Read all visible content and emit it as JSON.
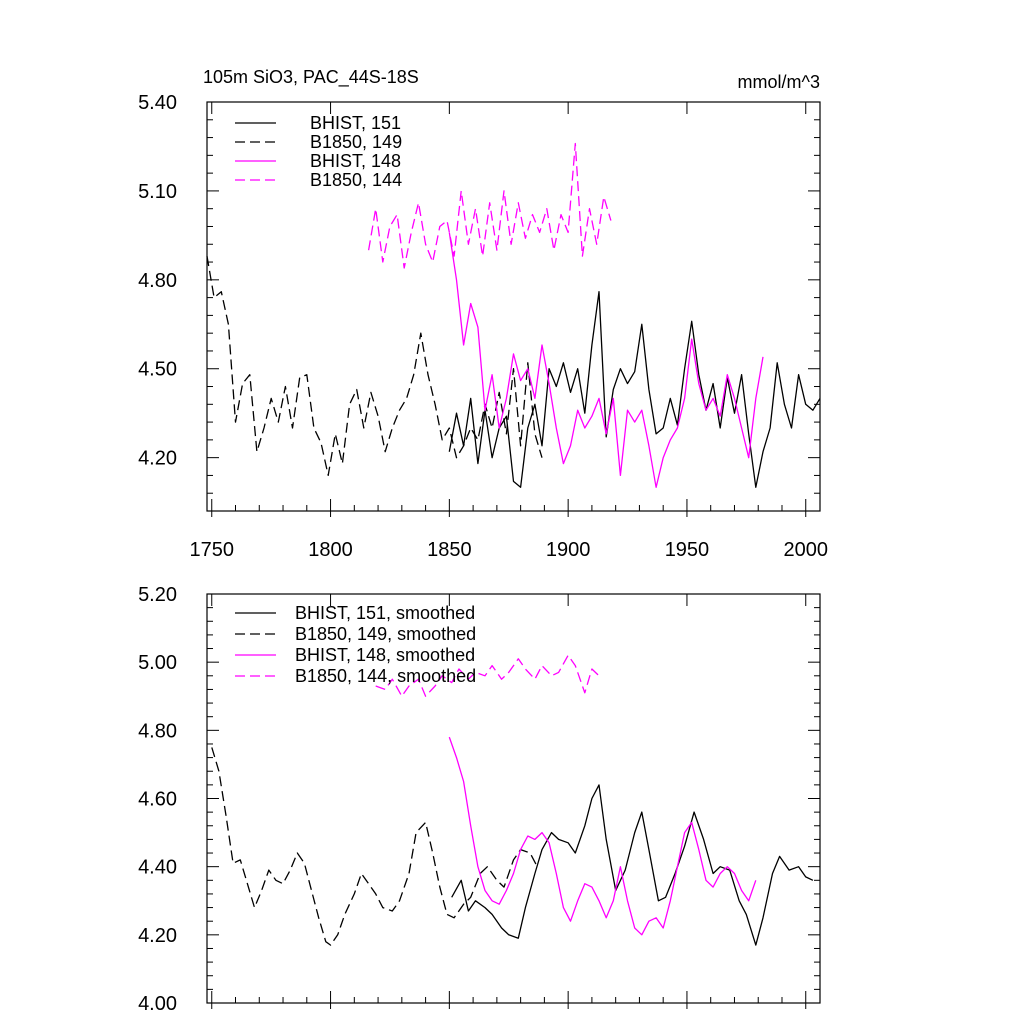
{
  "figure": {
    "title_left": "105m SiO3, PAC_44S-18S",
    "title_right": "mmol/m^3"
  },
  "chart_data": [
    {
      "type": "line",
      "panel": "top",
      "title": "105m SiO3, PAC_44S-18S",
      "units": "mmol/m^3",
      "xlim": [
        1748,
        2006
      ],
      "ylim": [
        4.02,
        5.4
      ],
      "x_ticks": [
        1750,
        1800,
        1850,
        1900,
        1950,
        2000
      ],
      "x_tick_labels": [
        "1750",
        "1800",
        "1850",
        "1900",
        "1950",
        "2000"
      ],
      "y_ticks": [
        4.2,
        4.5,
        4.8,
        5.1,
        5.4
      ],
      "y_tick_labels": [
        "4.20",
        "4.50",
        "4.80",
        "5.10",
        "5.40"
      ],
      "legend_position": "top-left",
      "grid": false,
      "series": [
        {
          "name": "BHIST, 151",
          "color": "#000000",
          "dash": "solid",
          "x": [
            1850,
            1853,
            1856,
            1859,
            1862,
            1865,
            1868,
            1871,
            1874,
            1877,
            1880,
            1883,
            1886,
            1889,
            1892,
            1895,
            1898,
            1901,
            1904,
            1907,
            1910,
            1913,
            1916,
            1919,
            1922,
            1925,
            1928,
            1931,
            1934,
            1937,
            1940,
            1943,
            1946,
            1949,
            1952,
            1955,
            1958,
            1961,
            1964,
            1967,
            1970,
            1973,
            1976,
            1979,
            1982,
            1985,
            1988,
            1991,
            1994,
            1997,
            2000,
            2003,
            2006
          ],
          "y": [
            4.22,
            4.35,
            4.24,
            4.4,
            4.18,
            4.36,
            4.2,
            4.3,
            4.34,
            4.12,
            4.1,
            4.3,
            4.38,
            4.24,
            4.5,
            4.44,
            4.52,
            4.42,
            4.5,
            4.35,
            4.58,
            4.76,
            4.27,
            4.43,
            4.5,
            4.45,
            4.49,
            4.65,
            4.43,
            4.28,
            4.3,
            4.4,
            4.31,
            4.5,
            4.66,
            4.48,
            4.36,
            4.45,
            4.3,
            4.47,
            4.35,
            4.48,
            4.28,
            4.1,
            4.22,
            4.3,
            4.52,
            4.38,
            4.3,
            4.48,
            4.38,
            4.36,
            4.4
          ]
        },
        {
          "name": "B1850, 149",
          "color": "#000000",
          "dash": "dashed",
          "x": [
            1748,
            1751,
            1754,
            1757,
            1760,
            1763,
            1766,
            1769,
            1772,
            1775,
            1778,
            1781,
            1784,
            1787,
            1790,
            1793,
            1796,
            1799,
            1802,
            1805,
            1808,
            1811,
            1814,
            1817,
            1820,
            1823,
            1826,
            1829,
            1832,
            1835,
            1838,
            1841,
            1844,
            1847,
            1850,
            1853,
            1856,
            1859,
            1862,
            1865,
            1868,
            1871,
            1874,
            1877,
            1880,
            1883,
            1886,
            1889
          ],
          "y": [
            4.88,
            4.74,
            4.76,
            4.65,
            4.32,
            4.45,
            4.48,
            4.22,
            4.3,
            4.4,
            4.32,
            4.44,
            4.3,
            4.47,
            4.48,
            4.3,
            4.25,
            4.14,
            4.28,
            4.18,
            4.38,
            4.43,
            4.3,
            4.42,
            4.34,
            4.22,
            4.3,
            4.36,
            4.4,
            4.48,
            4.62,
            4.48,
            4.38,
            4.26,
            4.3,
            4.2,
            4.24,
            4.3,
            4.26,
            4.38,
            4.3,
            4.42,
            4.28,
            4.5,
            4.24,
            4.52,
            4.28,
            4.2
          ]
        },
        {
          "name": "BHIST, 148",
          "color": "#ff00ff",
          "dash": "solid",
          "x": [
            1850,
            1853,
            1856,
            1859,
            1862,
            1865,
            1868,
            1871,
            1874,
            1877,
            1880,
            1883,
            1886,
            1889,
            1892,
            1895,
            1898,
            1901,
            1904,
            1907,
            1910,
            1913,
            1916,
            1919,
            1922,
            1925,
            1928,
            1931,
            1934,
            1937,
            1940,
            1943,
            1946,
            1949,
            1952,
            1955,
            1958,
            1961,
            1964,
            1967,
            1970,
            1973,
            1976,
            1979,
            1982
          ],
          "y": [
            4.96,
            4.8,
            4.58,
            4.72,
            4.64,
            4.36,
            4.48,
            4.3,
            4.4,
            4.55,
            4.46,
            4.5,
            4.4,
            4.58,
            4.45,
            4.3,
            4.18,
            4.24,
            4.36,
            4.3,
            4.34,
            4.4,
            4.28,
            4.4,
            4.14,
            4.36,
            4.32,
            4.36,
            4.24,
            4.1,
            4.2,
            4.26,
            4.3,
            4.4,
            4.6,
            4.45,
            4.36,
            4.4,
            4.34,
            4.48,
            4.4,
            4.3,
            4.2,
            4.4,
            4.54
          ]
        },
        {
          "name": "B1850, 144",
          "color": "#ff00ff",
          "dash": "dashed",
          "x": [
            1816,
            1819,
            1822,
            1825,
            1828,
            1831,
            1834,
            1837,
            1840,
            1843,
            1846,
            1849,
            1852,
            1855,
            1858,
            1861,
            1864,
            1867,
            1870,
            1873,
            1876,
            1879,
            1882,
            1885,
            1888,
            1891,
            1894,
            1897,
            1900,
            1903,
            1906,
            1909,
            1912,
            1915,
            1918
          ],
          "y": [
            4.9,
            5.04,
            4.86,
            4.98,
            5.02,
            4.84,
            4.96,
            5.06,
            4.92,
            4.86,
            4.98,
            5.0,
            4.88,
            5.1,
            4.92,
            5.04,
            4.88,
            5.06,
            4.9,
            5.1,
            4.92,
            5.06,
            4.94,
            5.02,
            4.96,
            5.04,
            4.9,
            5.02,
            4.96,
            5.26,
            4.88,
            5.04,
            4.92,
            5.08,
            5.0
          ]
        }
      ]
    },
    {
      "type": "line",
      "panel": "bottom",
      "xlim": [
        1748,
        2006
      ],
      "ylim": [
        4.0,
        5.2
      ],
      "y_ticks": [
        4.0,
        4.2,
        4.4,
        4.6,
        4.8,
        5.0,
        5.2
      ],
      "y_tick_labels": [
        "4.00",
        "4.20",
        "4.40",
        "4.60",
        "4.80",
        "5.00",
        "5.20"
      ],
      "legend_position": "top-left",
      "grid": false,
      "series": [
        {
          "name": "BHIST, 151, smoothed",
          "color": "#000000",
          "dash": "solid",
          "x": [
            1851,
            1855,
            1858,
            1861,
            1865,
            1868,
            1872,
            1875,
            1879,
            1882,
            1886,
            1889,
            1893,
            1896,
            1900,
            1903,
            1907,
            1910,
            1913,
            1916,
            1920,
            1924,
            1928,
            1931,
            1934,
            1938,
            1941,
            1945,
            1949,
            1953,
            1957,
            1961,
            1964,
            1968,
            1972,
            1975,
            1979,
            1982,
            1986,
            1989,
            1993,
            1997,
            2000,
            2003
          ],
          "y": [
            4.31,
            4.36,
            4.27,
            4.3,
            4.28,
            4.26,
            4.22,
            4.2,
            4.19,
            4.28,
            4.38,
            4.45,
            4.5,
            4.48,
            4.47,
            4.44,
            4.52,
            4.6,
            4.64,
            4.48,
            4.33,
            4.39,
            4.5,
            4.56,
            4.45,
            4.3,
            4.31,
            4.38,
            4.46,
            4.56,
            4.48,
            4.38,
            4.4,
            4.39,
            4.3,
            4.26,
            4.17,
            4.25,
            4.38,
            4.43,
            4.39,
            4.4,
            4.37,
            4.36
          ]
        },
        {
          "name": "B1850, 149, smoothed",
          "color": "#000000",
          "dash": "dashed",
          "x": [
            1750,
            1753,
            1756,
            1759,
            1762,
            1765,
            1768,
            1771,
            1774,
            1777,
            1780,
            1783,
            1786,
            1789,
            1792,
            1795,
            1798,
            1800,
            1803,
            1806,
            1810,
            1813,
            1816,
            1819,
            1822,
            1826,
            1829,
            1833,
            1836,
            1840,
            1843,
            1846,
            1849,
            1852,
            1856,
            1859,
            1863,
            1866,
            1870,
            1873,
            1877,
            1880,
            1884,
            1887
          ],
          "y": [
            4.75,
            4.68,
            4.55,
            4.41,
            4.42,
            4.35,
            4.28,
            4.33,
            4.39,
            4.36,
            4.35,
            4.39,
            4.44,
            4.41,
            4.33,
            4.25,
            4.18,
            4.17,
            4.2,
            4.26,
            4.32,
            4.38,
            4.35,
            4.32,
            4.28,
            4.27,
            4.3,
            4.38,
            4.5,
            4.53,
            4.44,
            4.34,
            4.26,
            4.25,
            4.29,
            4.31,
            4.38,
            4.4,
            4.36,
            4.34,
            4.42,
            4.45,
            4.44,
            4.4
          ]
        },
        {
          "name": "BHIST, 148, smoothed",
          "color": "#ff00ff",
          "dash": "solid",
          "x": [
            1850,
            1853,
            1856,
            1859,
            1862,
            1865,
            1868,
            1871,
            1874,
            1877,
            1880,
            1883,
            1886,
            1889,
            1892,
            1895,
            1898,
            1901,
            1904,
            1907,
            1910,
            1913,
            1916,
            1919,
            1922,
            1925,
            1928,
            1931,
            1934,
            1937,
            1940,
            1943,
            1946,
            1949,
            1952,
            1955,
            1958,
            1961,
            1964,
            1967,
            1970,
            1973,
            1976,
            1979
          ],
          "y": [
            4.78,
            4.72,
            4.65,
            4.52,
            4.4,
            4.33,
            4.3,
            4.29,
            4.33,
            4.38,
            4.45,
            4.49,
            4.48,
            4.5,
            4.47,
            4.38,
            4.28,
            4.24,
            4.3,
            4.35,
            4.34,
            4.3,
            4.25,
            4.3,
            4.4,
            4.3,
            4.22,
            4.2,
            4.24,
            4.25,
            4.22,
            4.3,
            4.4,
            4.5,
            4.53,
            4.45,
            4.36,
            4.34,
            4.38,
            4.4,
            4.38,
            4.33,
            4.3,
            4.36
          ]
        },
        {
          "name": "B1850, 144, smoothed",
          "color": "#ff00ff",
          "dash": "dashed",
          "x": [
            1819,
            1823,
            1826,
            1830,
            1833,
            1837,
            1840,
            1844,
            1847,
            1851,
            1854,
            1858,
            1861,
            1865,
            1868,
            1872,
            1875,
            1879,
            1882,
            1886,
            1889,
            1893,
            1896,
            1900,
            1903,
            1907,
            1910,
            1913
          ],
          "y": [
            4.93,
            4.92,
            4.95,
            4.9,
            4.93,
            4.95,
            4.9,
            4.93,
            4.96,
            4.94,
            4.98,
            4.95,
            4.97,
            4.96,
            4.99,
            4.95,
            4.97,
            5.01,
            4.98,
            4.95,
            4.99,
            4.96,
            4.97,
            5.02,
            4.99,
            4.91,
            4.98,
            4.96
          ]
        }
      ]
    }
  ]
}
